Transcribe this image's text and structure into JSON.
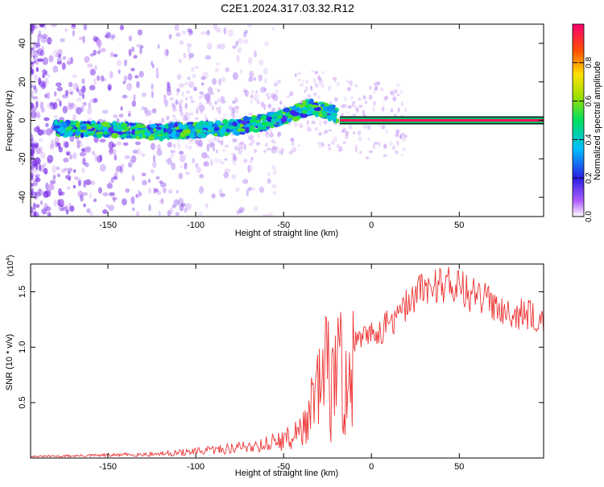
{
  "title": "C2E1.2024.317.03.32.R12",
  "chart_data": [
    {
      "type": "heatmap",
      "xlabel": "Height of straight line (km)",
      "ylabel": "Frequency (Hz)",
      "xlim": [
        -194,
        98
      ],
      "ylim": [
        -50,
        50
      ],
      "x_ticks": [
        -150,
        -100,
        -50,
        0,
        50
      ],
      "y_ticks": [
        -40,
        -20,
        0,
        20,
        40
      ],
      "colorbar": {
        "label": "Normalized spectral amplitude",
        "range": [
          0,
          1
        ],
        "ticks": [
          "0.0",
          "0.2",
          "0.4",
          "0.6",
          "0.8"
        ]
      },
      "ridge": [
        {
          "x": -180,
          "y": -4
        },
        {
          "x": -150,
          "y": -5
        },
        {
          "x": -120,
          "y": -6
        },
        {
          "x": -100,
          "y": -5
        },
        {
          "x": -80,
          "y": -4
        },
        {
          "x": -60,
          "y": -1
        },
        {
          "x": -45,
          "y": 3
        },
        {
          "x": -35,
          "y": 7
        },
        {
          "x": -25,
          "y": 5
        },
        {
          "x": -15,
          "y": 1
        },
        {
          "x": 0,
          "y": 0
        },
        {
          "x": 98,
          "y": 0
        }
      ],
      "grid": false
    },
    {
      "type": "line",
      "xlabel": "Height of straight line (km)",
      "ylabel": "SNR (10 * v/v)",
      "y_multiplier": "(x10^4)",
      "xlim": [
        -194,
        98
      ],
      "ylim": [
        0,
        1.75
      ],
      "x_ticks": [
        -150,
        -100,
        -50,
        0,
        50
      ],
      "y_ticks": [
        "0.5",
        "1.0",
        "1.5"
      ],
      "color": "#ee3333",
      "envelope": [
        {
          "x": -194,
          "y": 0.02
        },
        {
          "x": -150,
          "y": 0.04
        },
        {
          "x": -120,
          "y": 0.06
        },
        {
          "x": -100,
          "y": 0.09
        },
        {
          "x": -80,
          "y": 0.14
        },
        {
          "x": -60,
          "y": 0.2
        },
        {
          "x": -45,
          "y": 0.3
        },
        {
          "x": -35,
          "y": 0.55
        },
        {
          "x": -28,
          "y": 0.95
        },
        {
          "x": -22,
          "y": 1.15
        },
        {
          "x": -15,
          "y": 1.05
        },
        {
          "x": -5,
          "y": 1.12
        },
        {
          "x": 5,
          "y": 1.2
        },
        {
          "x": 15,
          "y": 1.32
        },
        {
          "x": 25,
          "y": 1.55
        },
        {
          "x": 35,
          "y": 1.62
        },
        {
          "x": 45,
          "y": 1.66
        },
        {
          "x": 55,
          "y": 1.55
        },
        {
          "x": 70,
          "y": 1.45
        },
        {
          "x": 85,
          "y": 1.35
        },
        {
          "x": 98,
          "y": 1.32
        }
      ],
      "grid": false
    }
  ]
}
